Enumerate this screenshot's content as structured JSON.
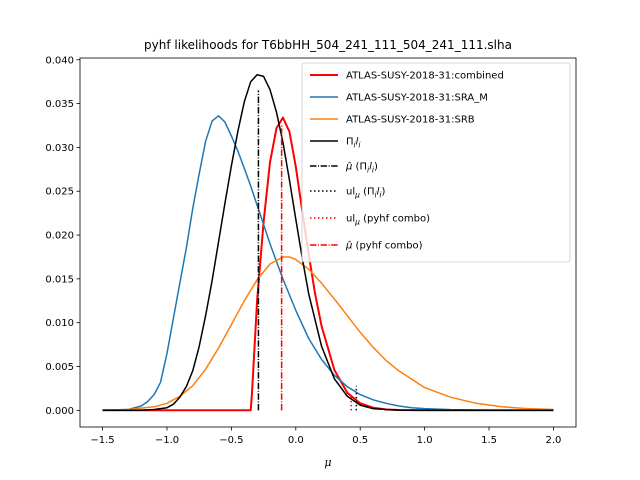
{
  "chart_data": {
    "type": "line",
    "title": "pyhf likelihoods for T6bbHH_504_241_111_504_241_111.slha",
    "xlabel": "μ",
    "ylabel": "",
    "xlim": [
      -1.675,
      2.175
    ],
    "ylim": [
      -0.0019,
      0.0402
    ],
    "xticks": [
      -1.5,
      -1.0,
      -0.5,
      0.0,
      0.5,
      1.0,
      1.5,
      2.0
    ],
    "xtick_labels": [
      "−1.5",
      "−1.0",
      "−0.5",
      "0.0",
      "0.5",
      "1.0",
      "1.5",
      "2.0"
    ],
    "yticks": [
      0.0,
      0.005,
      0.01,
      0.015,
      0.02,
      0.025,
      0.03,
      0.035,
      0.04
    ],
    "ytick_labels": [
      "0.000",
      "0.005",
      "0.010",
      "0.015",
      "0.020",
      "0.025",
      "0.030",
      "0.035",
      "0.040"
    ],
    "grid": false,
    "legend_position": "top-right",
    "series": [
      {
        "name": "ATLAS-SUSY-2018-31:combined",
        "color": "#ff0000",
        "style": "solid",
        "width": 2,
        "x": [
          -1.5,
          -1.0,
          -0.5,
          -0.35,
          -0.34,
          -0.3,
          -0.25,
          -0.2,
          -0.15,
          -0.1,
          -0.05,
          0.0,
          0.05,
          0.1,
          0.15,
          0.2,
          0.3,
          0.4,
          0.5,
          0.6,
          0.7,
          0.8,
          1.0,
          1.5,
          2.0
        ],
        "y": [
          0.0,
          0.0,
          0.0,
          0.0,
          0.002,
          0.0125,
          0.0215,
          0.0283,
          0.0322,
          0.0334,
          0.0318,
          0.0278,
          0.0228,
          0.0178,
          0.0133,
          0.0096,
          0.0046,
          0.002,
          0.0008,
          0.0003,
          0.0001,
          4e-05,
          0.0,
          0.0,
          0.0
        ]
      },
      {
        "name": "ATLAS-SUSY-2018-31:SRA_M",
        "color": "#1f77b4",
        "style": "solid",
        "width": 1.5,
        "x": [
          -1.5,
          -1.3,
          -1.2,
          -1.15,
          -1.1,
          -1.05,
          -1.0,
          -0.95,
          -0.9,
          -0.85,
          -0.8,
          -0.75,
          -0.7,
          -0.65,
          -0.6,
          -0.55,
          -0.5,
          -0.45,
          -0.4,
          -0.35,
          -0.3,
          -0.25,
          -0.2,
          -0.1,
          0.0,
          0.1,
          0.2,
          0.3,
          0.4,
          0.5,
          0.6,
          0.7,
          0.8,
          0.9,
          1.0,
          1.2,
          1.5,
          2.0
        ],
        "y": [
          0.0,
          0.0001,
          0.0005,
          0.001,
          0.0018,
          0.0032,
          0.0065,
          0.0105,
          0.0145,
          0.0185,
          0.023,
          0.027,
          0.0307,
          0.033,
          0.0336,
          0.0329,
          0.0313,
          0.0296,
          0.0276,
          0.0256,
          0.0234,
          0.0212,
          0.019,
          0.015,
          0.0114,
          0.0082,
          0.0058,
          0.004,
          0.0027,
          0.0018,
          0.0012,
          0.0008,
          0.0005,
          0.0003,
          0.0002,
          8e-05,
          2e-05,
          0.0
        ]
      },
      {
        "name": "ATLAS-SUSY-2018-31:SRB",
        "color": "#ff7f0e",
        "style": "solid",
        "width": 1.5,
        "x": [
          -1.5,
          -1.3,
          -1.1,
          -1.0,
          -0.9,
          -0.8,
          -0.7,
          -0.6,
          -0.5,
          -0.4,
          -0.3,
          -0.2,
          -0.1,
          -0.05,
          0.0,
          0.1,
          0.2,
          0.3,
          0.4,
          0.5,
          0.6,
          0.7,
          0.8,
          1.0,
          1.2,
          1.4,
          1.6,
          1.8,
          2.0
        ],
        "y": [
          0.0,
          0.0001,
          0.0004,
          0.0008,
          0.0016,
          0.0028,
          0.0047,
          0.0071,
          0.0098,
          0.0125,
          0.0149,
          0.0167,
          0.0175,
          0.0175,
          0.0172,
          0.0161,
          0.0145,
          0.0127,
          0.0108,
          0.0089,
          0.0072,
          0.0057,
          0.0045,
          0.0026,
          0.0015,
          0.0008,
          0.0004,
          0.0002,
          0.0001
        ]
      },
      {
        "name": "Π_i l_i",
        "color": "#000000",
        "style": "solid",
        "width": 1.5,
        "x": [
          -1.5,
          -1.2,
          -1.1,
          -1.0,
          -0.95,
          -0.9,
          -0.85,
          -0.8,
          -0.75,
          -0.7,
          -0.65,
          -0.6,
          -0.55,
          -0.5,
          -0.45,
          -0.4,
          -0.35,
          -0.3,
          -0.25,
          -0.2,
          -0.15,
          -0.1,
          -0.05,
          0.0,
          0.05,
          0.1,
          0.2,
          0.3,
          0.4,
          0.5,
          0.6,
          0.7,
          0.8,
          1.0,
          1.5,
          2.0
        ],
        "y": [
          0.0,
          0.0,
          0.0001,
          0.0003,
          0.0007,
          0.0015,
          0.0027,
          0.0045,
          0.0073,
          0.0108,
          0.0148,
          0.0192,
          0.0236,
          0.0279,
          0.0318,
          0.0352,
          0.0375,
          0.0383,
          0.0381,
          0.0366,
          0.034,
          0.0306,
          0.0263,
          0.0218,
          0.0174,
          0.0133,
          0.0073,
          0.0036,
          0.0016,
          0.0006,
          0.0002,
          0.0001,
          3e-05,
          0.0,
          0.0,
          0.0
        ]
      }
    ],
    "vlines": [
      {
        "name": "μ̂ (Π_i l_i)",
        "x": -0.29,
        "y_top": 0.0365,
        "color": "#000000",
        "style": "dashdot"
      },
      {
        "name": "ul_μ (Π_i l_i)",
        "x": 0.47,
        "y_top": 0.0028,
        "color": "#000000",
        "style": "dotted"
      },
      {
        "name": "ul_μ (pyhf combo)",
        "x": 0.43,
        "y_top": 0.0018,
        "color": "#ff0000",
        "style": "dotted"
      },
      {
        "name": "μ̂ (pyhf combo)",
        "x": -0.11,
        "y_top": 0.0325,
        "color": "#ff0000",
        "style": "dashdot"
      }
    ]
  }
}
